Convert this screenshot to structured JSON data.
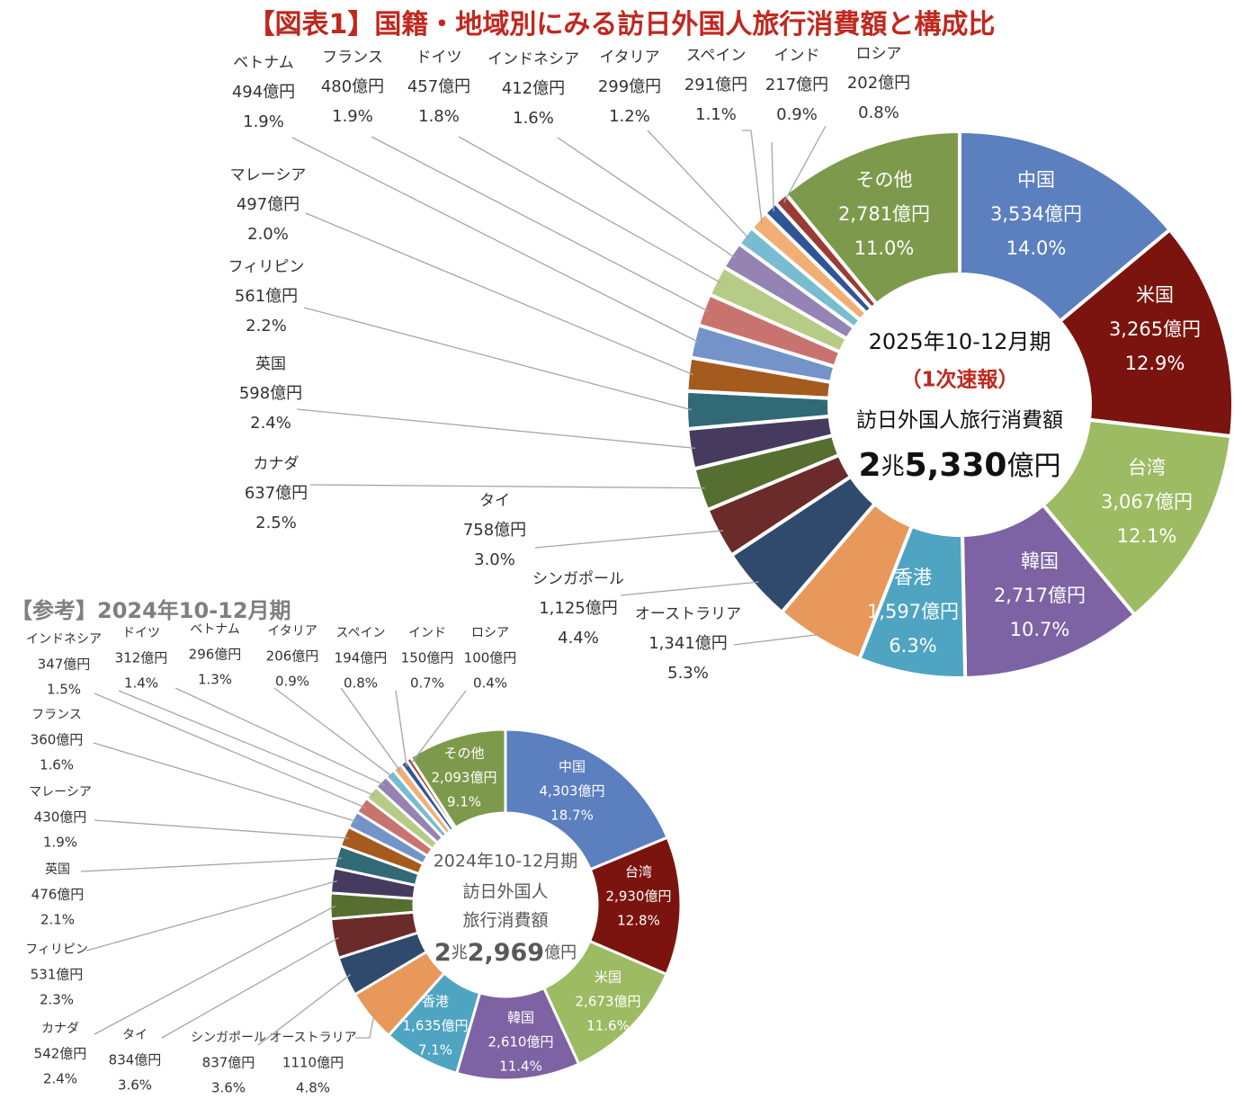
{
  "title": "【図表1】国籍・地域別にみる訪日外国人旅行消費額と構成比",
  "reference_title": "【参考】2024年10-12月期",
  "colors": {
    "title": "#c0281e",
    "label_text": "#333333",
    "leader_line": "#a6a6a6",
    "center_text": "#111111",
    "ref_center_text": "#595959"
  },
  "chart_data": [
    {
      "type": "donut",
      "name": "2025年10-12月期",
      "center": {
        "period": "2025年10-12月期",
        "note": "（1次速報）",
        "subject": "訪日外国人旅行消費額",
        "total_big": "2",
        "total_unit": "兆",
        "total_num": "5,330",
        "total_suffix": "億円"
      },
      "slices": [
        {
          "name": "中国",
          "amount": "3,534億円",
          "value": 3534,
          "pct": "14.0%",
          "color": "#5b7fbf"
        },
        {
          "name": "米国",
          "amount": "3,265億円",
          "value": 3265,
          "pct": "12.9%",
          "color": "#7b140e"
        },
        {
          "name": "台湾",
          "amount": "3,067億円",
          "value": 3067,
          "pct": "12.1%",
          "color": "#9dbb62"
        },
        {
          "name": "韓国",
          "amount": "2,717億円",
          "value": 2717,
          "pct": "10.7%",
          "color": "#7d63a3"
        },
        {
          "name": "香港",
          "amount": "1,597億円",
          "value": 1597,
          "pct": "6.3%",
          "color": "#4fa4c2"
        },
        {
          "name": "オーストラリア",
          "amount": "1,341億円",
          "value": 1341,
          "pct": "5.3%",
          "color": "#e8985a"
        },
        {
          "name": "シンガポール",
          "amount": "1,125億円",
          "value": 1125,
          "pct": "4.4%",
          "color": "#2f4a6c"
        },
        {
          "name": "タイ",
          "amount": "758億円",
          "value": 758,
          "pct": "3.0%",
          "color": "#6b2b2b"
        },
        {
          "name": "カナダ",
          "amount": "637億円",
          "value": 637,
          "pct": "2.5%",
          "color": "#566f30"
        },
        {
          "name": "英国",
          "amount": "598億円",
          "value": 598,
          "pct": "2.4%",
          "color": "#463a5e"
        },
        {
          "name": "フィリピン",
          "amount": "561億円",
          "value": 561,
          "pct": "2.2%",
          "color": "#316977"
        },
        {
          "name": "マレーシア",
          "amount": "497億円",
          "value": 497,
          "pct": "2.0%",
          "color": "#a55a1e"
        },
        {
          "name": "ベトナム",
          "amount": "494億円",
          "value": 494,
          "pct": "1.9%",
          "color": "#7493c9"
        },
        {
          "name": "フランス",
          "amount": "480億円",
          "value": 480,
          "pct": "1.9%",
          "color": "#c9736e"
        },
        {
          "name": "ドイツ",
          "amount": "457億円",
          "value": 457,
          "pct": "1.8%",
          "color": "#b6cc86"
        },
        {
          "name": "インドネシア",
          "amount": "412億円",
          "value": 412,
          "pct": "1.6%",
          "color": "#9583b3"
        },
        {
          "name": "イタリア",
          "amount": "299億円",
          "value": 299,
          "pct": "1.2%",
          "color": "#78bcd2"
        },
        {
          "name": "スペイン",
          "amount": "291億円",
          "value": 291,
          "pct": "1.1%",
          "color": "#f1ae75"
        },
        {
          "name": "インド",
          "amount": "217億円",
          "value": 217,
          "pct": "0.9%",
          "color": "#2f5597"
        },
        {
          "name": "ロシア",
          "amount": "202億円",
          "value": 202,
          "pct": "0.8%",
          "color": "#9b3b36"
        },
        {
          "name": "その他",
          "amount": "2,781億円",
          "value": 2781,
          "pct": "11.0%",
          "color": "#7d9a4c"
        }
      ]
    },
    {
      "type": "donut",
      "name": "2024年10-12月期",
      "center": {
        "period": "2024年10-12月期",
        "subject_line1": "訪日外国人",
        "subject_line2": "旅行消費額",
        "total_big": "2",
        "total_unit": "兆",
        "total_num": "2,969",
        "total_suffix": "億円"
      },
      "slices": [
        {
          "name": "中国",
          "amount": "4,303億円",
          "value": 4303,
          "pct": "18.7%",
          "color": "#5b7fbf"
        },
        {
          "name": "台湾",
          "amount": "2,930億円",
          "value": 2930,
          "pct": "12.8%",
          "color": "#7b140e"
        },
        {
          "name": "米国",
          "amount": "2,673億円",
          "value": 2673,
          "pct": "11.6%",
          "color": "#9dbb62"
        },
        {
          "name": "韓国",
          "amount": "2,610億円",
          "value": 2610,
          "pct": "11.4%",
          "color": "#7d63a3"
        },
        {
          "name": "香港",
          "amount": "1,635億円",
          "value": 1635,
          "pct": "7.1%",
          "color": "#4fa4c2"
        },
        {
          "name": "オーストラリア",
          "amount": "1110億円",
          "value": 1110,
          "pct": "4.8%",
          "color": "#e8985a"
        },
        {
          "name": "シンガポール",
          "amount": "837億円",
          "value": 837,
          "pct": "3.6%",
          "color": "#2f4a6c"
        },
        {
          "name": "タイ",
          "amount": "834億円",
          "value": 834,
          "pct": "3.6%",
          "color": "#6b2b2b"
        },
        {
          "name": "カナダ",
          "amount": "542億円",
          "value": 542,
          "pct": "2.4%",
          "color": "#566f30"
        },
        {
          "name": "フィリピン",
          "amount": "531億円",
          "value": 531,
          "pct": "2.3%",
          "color": "#463a5e"
        },
        {
          "name": "英国",
          "amount": "476億円",
          "value": 476,
          "pct": "2.1%",
          "color": "#316977"
        },
        {
          "name": "マレーシア",
          "amount": "430億円",
          "value": 430,
          "pct": "1.9%",
          "color": "#a55a1e"
        },
        {
          "name": "フランス",
          "amount": "360億円",
          "value": 360,
          "pct": "1.6%",
          "color": "#7493c9"
        },
        {
          "name": "インドネシア",
          "amount": "347億円",
          "value": 347,
          "pct": "1.5%",
          "color": "#c9736e"
        },
        {
          "name": "ドイツ",
          "amount": "312億円",
          "value": 312,
          "pct": "1.4%",
          "color": "#b6cc86"
        },
        {
          "name": "ベトナム",
          "amount": "296億円",
          "value": 296,
          "pct": "1.3%",
          "color": "#9583b3"
        },
        {
          "name": "イタリア",
          "amount": "206億円",
          "value": 206,
          "pct": "0.9%",
          "color": "#78bcd2"
        },
        {
          "name": "スペイン",
          "amount": "194億円",
          "value": 194,
          "pct": "0.8%",
          "color": "#f1ae75"
        },
        {
          "name": "インド",
          "amount": "150億円",
          "value": 150,
          "pct": "0.7%",
          "color": "#2f5597"
        },
        {
          "name": "ロシア",
          "amount": "100億円",
          "value": 100,
          "pct": "0.4%",
          "color": "#9b3b36"
        },
        {
          "name": "その他",
          "amount": "2,093億円",
          "value": 2093,
          "pct": "9.1%",
          "color": "#7d9a4c"
        }
      ]
    }
  ]
}
